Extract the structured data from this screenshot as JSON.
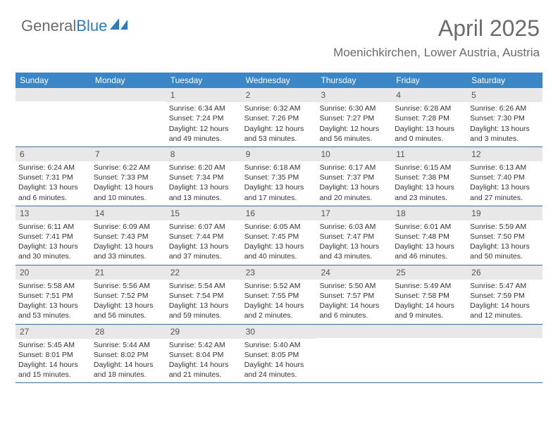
{
  "brand": {
    "part1": "General",
    "part2": "Blue"
  },
  "title": "April 2025",
  "location": "Moenichkirchen, Lower Austria, Austria",
  "colors": {
    "header_bg": "#3b86c7",
    "header_text": "#ffffff",
    "daynum_bg": "#e8e8e8",
    "rule": "#3b6a95",
    "text": "#333333",
    "muted": "#6b6b6b"
  },
  "day_headers": [
    "Sunday",
    "Monday",
    "Tuesday",
    "Wednesday",
    "Thursday",
    "Friday",
    "Saturday"
  ],
  "weeks": [
    [
      {
        "n": "",
        "sr": "",
        "ss": "",
        "dl": ""
      },
      {
        "n": "",
        "sr": "",
        "ss": "",
        "dl": ""
      },
      {
        "n": "1",
        "sr": "Sunrise: 6:34 AM",
        "ss": "Sunset: 7:24 PM",
        "dl": "Daylight: 12 hours and 49 minutes."
      },
      {
        "n": "2",
        "sr": "Sunrise: 6:32 AM",
        "ss": "Sunset: 7:26 PM",
        "dl": "Daylight: 12 hours and 53 minutes."
      },
      {
        "n": "3",
        "sr": "Sunrise: 6:30 AM",
        "ss": "Sunset: 7:27 PM",
        "dl": "Daylight: 12 hours and 56 minutes."
      },
      {
        "n": "4",
        "sr": "Sunrise: 6:28 AM",
        "ss": "Sunset: 7:28 PM",
        "dl": "Daylight: 13 hours and 0 minutes."
      },
      {
        "n": "5",
        "sr": "Sunrise: 6:26 AM",
        "ss": "Sunset: 7:30 PM",
        "dl": "Daylight: 13 hours and 3 minutes."
      }
    ],
    [
      {
        "n": "6",
        "sr": "Sunrise: 6:24 AM",
        "ss": "Sunset: 7:31 PM",
        "dl": "Daylight: 13 hours and 6 minutes."
      },
      {
        "n": "7",
        "sr": "Sunrise: 6:22 AM",
        "ss": "Sunset: 7:33 PM",
        "dl": "Daylight: 13 hours and 10 minutes."
      },
      {
        "n": "8",
        "sr": "Sunrise: 6:20 AM",
        "ss": "Sunset: 7:34 PM",
        "dl": "Daylight: 13 hours and 13 minutes."
      },
      {
        "n": "9",
        "sr": "Sunrise: 6:18 AM",
        "ss": "Sunset: 7:35 PM",
        "dl": "Daylight: 13 hours and 17 minutes."
      },
      {
        "n": "10",
        "sr": "Sunrise: 6:17 AM",
        "ss": "Sunset: 7:37 PM",
        "dl": "Daylight: 13 hours and 20 minutes."
      },
      {
        "n": "11",
        "sr": "Sunrise: 6:15 AM",
        "ss": "Sunset: 7:38 PM",
        "dl": "Daylight: 13 hours and 23 minutes."
      },
      {
        "n": "12",
        "sr": "Sunrise: 6:13 AM",
        "ss": "Sunset: 7:40 PM",
        "dl": "Daylight: 13 hours and 27 minutes."
      }
    ],
    [
      {
        "n": "13",
        "sr": "Sunrise: 6:11 AM",
        "ss": "Sunset: 7:41 PM",
        "dl": "Daylight: 13 hours and 30 minutes."
      },
      {
        "n": "14",
        "sr": "Sunrise: 6:09 AM",
        "ss": "Sunset: 7:43 PM",
        "dl": "Daylight: 13 hours and 33 minutes."
      },
      {
        "n": "15",
        "sr": "Sunrise: 6:07 AM",
        "ss": "Sunset: 7:44 PM",
        "dl": "Daylight: 13 hours and 37 minutes."
      },
      {
        "n": "16",
        "sr": "Sunrise: 6:05 AM",
        "ss": "Sunset: 7:45 PM",
        "dl": "Daylight: 13 hours and 40 minutes."
      },
      {
        "n": "17",
        "sr": "Sunrise: 6:03 AM",
        "ss": "Sunset: 7:47 PM",
        "dl": "Daylight: 13 hours and 43 minutes."
      },
      {
        "n": "18",
        "sr": "Sunrise: 6:01 AM",
        "ss": "Sunset: 7:48 PM",
        "dl": "Daylight: 13 hours and 46 minutes."
      },
      {
        "n": "19",
        "sr": "Sunrise: 5:59 AM",
        "ss": "Sunset: 7:50 PM",
        "dl": "Daylight: 13 hours and 50 minutes."
      }
    ],
    [
      {
        "n": "20",
        "sr": "Sunrise: 5:58 AM",
        "ss": "Sunset: 7:51 PM",
        "dl": "Daylight: 13 hours and 53 minutes."
      },
      {
        "n": "21",
        "sr": "Sunrise: 5:56 AM",
        "ss": "Sunset: 7:52 PM",
        "dl": "Daylight: 13 hours and 56 minutes."
      },
      {
        "n": "22",
        "sr": "Sunrise: 5:54 AM",
        "ss": "Sunset: 7:54 PM",
        "dl": "Daylight: 13 hours and 59 minutes."
      },
      {
        "n": "23",
        "sr": "Sunrise: 5:52 AM",
        "ss": "Sunset: 7:55 PM",
        "dl": "Daylight: 14 hours and 2 minutes."
      },
      {
        "n": "24",
        "sr": "Sunrise: 5:50 AM",
        "ss": "Sunset: 7:57 PM",
        "dl": "Daylight: 14 hours and 6 minutes."
      },
      {
        "n": "25",
        "sr": "Sunrise: 5:49 AM",
        "ss": "Sunset: 7:58 PM",
        "dl": "Daylight: 14 hours and 9 minutes."
      },
      {
        "n": "26",
        "sr": "Sunrise: 5:47 AM",
        "ss": "Sunset: 7:59 PM",
        "dl": "Daylight: 14 hours and 12 minutes."
      }
    ],
    [
      {
        "n": "27",
        "sr": "Sunrise: 5:45 AM",
        "ss": "Sunset: 8:01 PM",
        "dl": "Daylight: 14 hours and 15 minutes."
      },
      {
        "n": "28",
        "sr": "Sunrise: 5:44 AM",
        "ss": "Sunset: 8:02 PM",
        "dl": "Daylight: 14 hours and 18 minutes."
      },
      {
        "n": "29",
        "sr": "Sunrise: 5:42 AM",
        "ss": "Sunset: 8:04 PM",
        "dl": "Daylight: 14 hours and 21 minutes."
      },
      {
        "n": "30",
        "sr": "Sunrise: 5:40 AM",
        "ss": "Sunset: 8:05 PM",
        "dl": "Daylight: 14 hours and 24 minutes."
      },
      {
        "n": "",
        "sr": "",
        "ss": "",
        "dl": ""
      },
      {
        "n": "",
        "sr": "",
        "ss": "",
        "dl": ""
      },
      {
        "n": "",
        "sr": "",
        "ss": "",
        "dl": ""
      }
    ]
  ]
}
